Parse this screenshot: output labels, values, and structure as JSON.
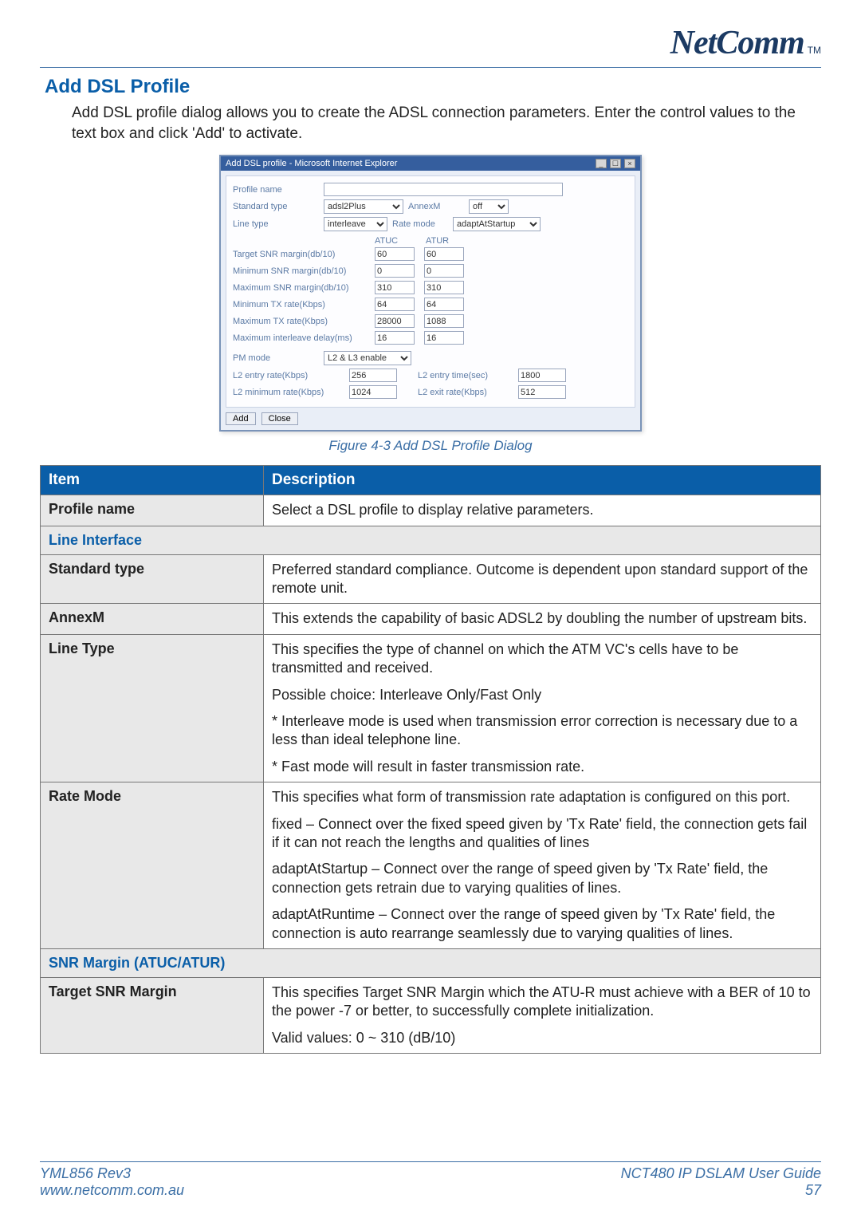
{
  "brand": {
    "name": "NetComm",
    "tm": "TM"
  },
  "section_title": "Add DSL Profile",
  "intro": "Add DSL profile dialog allows you to create the ADSL connection parameters. Enter the control values to the text box and click 'Add' to activate.",
  "dialog": {
    "window_title": "Add DSL profile - Microsoft Internet Explorer",
    "rows": {
      "profile_name_label": "Profile name",
      "standard_type_label": "Standard type",
      "standard_type_value": "adsl2Plus",
      "annexm_label": "AnnexM",
      "annexm_value": "off",
      "line_type_label": "Line type",
      "line_type_value": "interleave",
      "rate_mode_label": "Rate mode",
      "rate_mode_value": "adaptAtStartup"
    },
    "atuc_label": "ATUC",
    "atur_label": "ATUR",
    "metrics": [
      {
        "label": "Target SNR margin(db/10)",
        "atuc": "60",
        "atur": "60"
      },
      {
        "label": "Minimum SNR margin(db/10)",
        "atuc": "0",
        "atur": "0"
      },
      {
        "label": "Maximum SNR margin(db/10)",
        "atuc": "310",
        "atur": "310"
      },
      {
        "label": "Minimum TX rate(Kbps)",
        "atuc": "64",
        "atur": "64"
      },
      {
        "label": "Maximum TX rate(Kbps)",
        "atuc": "28000",
        "atur": "1088"
      },
      {
        "label": "Maximum interleave delay(ms)",
        "atuc": "16",
        "atur": "16"
      }
    ],
    "pm_mode_label": "PM mode",
    "pm_mode_value": "L2 & L3 enable",
    "l2_entry_rate_label": "L2 entry rate(Kbps)",
    "l2_entry_rate_value": "256",
    "l2_entry_time_label": "L2 entry time(sec)",
    "l2_entry_time_value": "1800",
    "l2_min_rate_label": "L2 minimum rate(Kbps)",
    "l2_min_rate_value": "1024",
    "l2_exit_rate_label": "L2 exit rate(Kbps)",
    "l2_exit_rate_value": "512",
    "buttons": {
      "add": "Add",
      "close": "Close"
    }
  },
  "caption": "Figure 4-3 Add DSL Profile Dialog",
  "table": {
    "headers": {
      "item": "Item",
      "desc": "Description"
    },
    "rows": [
      {
        "type": "row",
        "item": "Profile name",
        "paras": [
          "Select a DSL profile to display relative parameters."
        ]
      },
      {
        "type": "sub",
        "label": "Line Interface"
      },
      {
        "type": "row",
        "item": "Standard type",
        "paras": [
          "Preferred standard compliance. Outcome is dependent upon standard support of the remote unit."
        ]
      },
      {
        "type": "row",
        "item": "AnnexM",
        "paras": [
          "This extends the capability of basic ADSL2 by doubling the number of upstream bits."
        ]
      },
      {
        "type": "row",
        "item": "Line Type",
        "paras": [
          "This specifies the type of channel on which the ATM VC's cells have to be transmitted and received.",
          "Possible choice: Interleave Only/Fast Only",
          "* Interleave mode is used when transmission error correction is necessary due to a less than ideal telephone line.",
          "* Fast mode will result in faster transmission rate."
        ]
      },
      {
        "type": "row",
        "item": "Rate Mode",
        "paras": [
          "This specifies what form of transmission rate adaptation is configured on this port.",
          "fixed – Connect over the fixed speed given by 'Tx Rate' field, the connection gets fail if it can not reach the lengths and qualities of lines",
          "adaptAtStartup – Connect over the range of speed given by 'Tx Rate' field, the connection gets retrain due to varying qualities of lines.",
          "adaptAtRuntime – Connect over the range of speed given by 'Tx Rate' field, the connection is auto rearrange seamlessly due to varying qualities of lines."
        ]
      },
      {
        "type": "sub",
        "label": "SNR Margin (ATUC/ATUR)"
      },
      {
        "type": "row",
        "item": "Target SNR Margin",
        "paras": [
          "This specifies Target SNR Margin which the ATU-R must achieve with a BER of 10 to the power -7 or better, to successfully complete initialization.",
          "Valid values: 0 ~ 310 (dB/10)"
        ]
      }
    ]
  },
  "footer": {
    "left1": "YML856 Rev3",
    "left2": "www.netcomm.com.au",
    "right1": "NCT480 IP DSLAM User Guide",
    "right2": "57"
  },
  "colors": {
    "accent": "#0a5ea8",
    "rule": "#3a6ea5",
    "cell_gray": "#e8e8e8",
    "border": "#777"
  }
}
